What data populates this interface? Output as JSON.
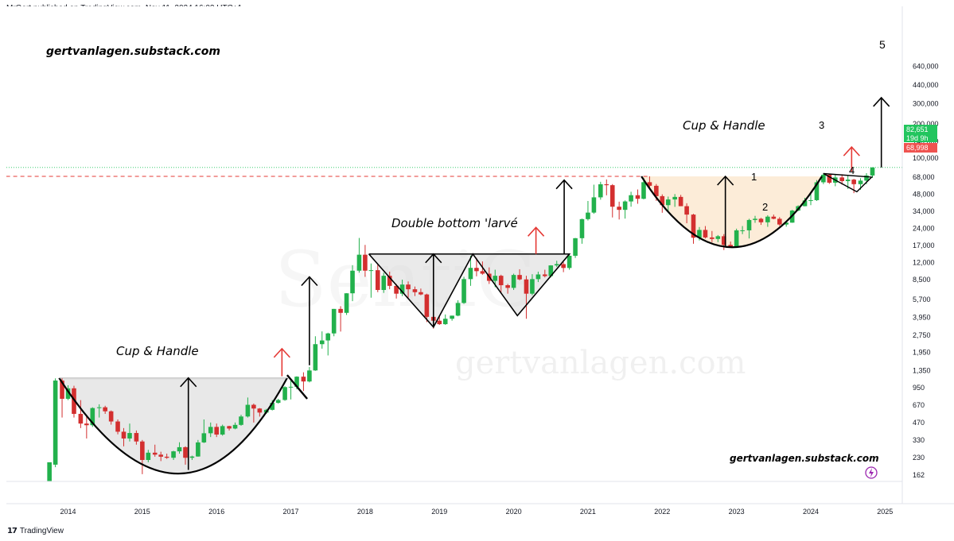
{
  "header": {
    "published_line": "MrGert published on TradingView.com, Nov 11, 2024 16:02 UTC+1"
  },
  "footer": {
    "brand": "TradingView",
    "logo_icon": "tradingview-logo-icon"
  },
  "watermarks": {
    "top_left": "gertvanlagen.substack.com",
    "bottom_right": "gertvanlagen.substack.com",
    "faint_center": "gertvanlagen.com"
  },
  "annotations": {
    "cup_handle_1": "Cup & Handle",
    "double_bottom": "Double bottom 'larvé",
    "cup_handle_2": "Cup & Handle",
    "wave_labels": [
      "1",
      "2",
      "3",
      "4",
      "5"
    ]
  },
  "price_badges": {
    "last_price": "82,651",
    "countdown": "19d 9h",
    "level": "68,998",
    "last_color": "#22c55e",
    "level_color": "#ef5350"
  },
  "chart_data": {
    "type": "candlestick",
    "scale": "log",
    "y_ticks": [
      "640,000",
      "440,000",
      "300,000",
      "200,000",
      "140,000",
      "100,000",
      "68,000",
      "48,000",
      "34,000",
      "24,000",
      "17,000",
      "12,000",
      "8,500",
      "5,700",
      "3,950",
      "2,750",
      "1,950",
      "1,350",
      "950",
      "670",
      "470",
      "330",
      "230",
      "162"
    ],
    "x_ticks": [
      "2014",
      "2015",
      "2016",
      "2017",
      "2018",
      "2019",
      "2020",
      "2021",
      "2022",
      "2023",
      "2024",
      "2025"
    ],
    "colors": {
      "up": "#22b14c",
      "down": "#d32f2f"
    },
    "candles": [
      {
        "t": 2013.75,
        "o": 110,
        "h": 200,
        "l": 100,
        "c": 210
      },
      {
        "t": 2013.83,
        "o": 200,
        "h": 1150,
        "l": 190,
        "c": 1100
      },
      {
        "t": 2013.92,
        "o": 1100,
        "h": 1165,
        "l": 520,
        "c": 760
      },
      {
        "t": 2014.0,
        "o": 760,
        "h": 1000,
        "l": 740,
        "c": 940
      },
      {
        "t": 2014.08,
        "o": 940,
        "h": 990,
        "l": 520,
        "c": 560
      },
      {
        "t": 2014.17,
        "o": 560,
        "h": 740,
        "l": 420,
        "c": 460
      },
      {
        "t": 2014.25,
        "o": 460,
        "h": 540,
        "l": 340,
        "c": 445
      },
      {
        "t": 2014.33,
        "o": 445,
        "h": 640,
        "l": 430,
        "c": 630
      },
      {
        "t": 2014.42,
        "o": 630,
        "h": 680,
        "l": 520,
        "c": 640
      },
      {
        "t": 2014.5,
        "o": 640,
        "h": 660,
        "l": 560,
        "c": 590
      },
      {
        "t": 2014.58,
        "o": 590,
        "h": 600,
        "l": 450,
        "c": 480
      },
      {
        "t": 2014.67,
        "o": 480,
        "h": 500,
        "l": 370,
        "c": 390
      },
      {
        "t": 2014.75,
        "o": 390,
        "h": 420,
        "l": 290,
        "c": 340
      },
      {
        "t": 2014.83,
        "o": 340,
        "h": 460,
        "l": 320,
        "c": 380
      },
      {
        "t": 2014.92,
        "o": 380,
        "h": 400,
        "l": 300,
        "c": 320
      },
      {
        "t": 2015.0,
        "o": 320,
        "h": 330,
        "l": 165,
        "c": 220
      },
      {
        "t": 2015.08,
        "o": 220,
        "h": 270,
        "l": 210,
        "c": 255
      },
      {
        "t": 2015.17,
        "o": 255,
        "h": 300,
        "l": 235,
        "c": 245
      },
      {
        "t": 2015.25,
        "o": 245,
        "h": 260,
        "l": 215,
        "c": 235
      },
      {
        "t": 2015.33,
        "o": 235,
        "h": 250,
        "l": 225,
        "c": 230
      },
      {
        "t": 2015.42,
        "o": 230,
        "h": 265,
        "l": 220,
        "c": 262
      },
      {
        "t": 2015.5,
        "o": 262,
        "h": 315,
        "l": 250,
        "c": 285
      },
      {
        "t": 2015.58,
        "o": 285,
        "h": 290,
        "l": 200,
        "c": 230
      },
      {
        "t": 2015.67,
        "o": 230,
        "h": 240,
        "l": 220,
        "c": 236
      },
      {
        "t": 2015.75,
        "o": 236,
        "h": 330,
        "l": 235,
        "c": 314
      },
      {
        "t": 2015.83,
        "o": 314,
        "h": 500,
        "l": 310,
        "c": 378
      },
      {
        "t": 2015.92,
        "o": 378,
        "h": 470,
        "l": 350,
        "c": 430
      },
      {
        "t": 2016.0,
        "o": 430,
        "h": 460,
        "l": 350,
        "c": 368
      },
      {
        "t": 2016.08,
        "o": 368,
        "h": 450,
        "l": 360,
        "c": 437
      },
      {
        "t": 2016.17,
        "o": 437,
        "h": 440,
        "l": 400,
        "c": 416
      },
      {
        "t": 2016.25,
        "o": 416,
        "h": 470,
        "l": 410,
        "c": 448
      },
      {
        "t": 2016.33,
        "o": 448,
        "h": 550,
        "l": 440,
        "c": 531
      },
      {
        "t": 2016.42,
        "o": 531,
        "h": 780,
        "l": 520,
        "c": 673
      },
      {
        "t": 2016.5,
        "o": 673,
        "h": 690,
        "l": 470,
        "c": 624
      },
      {
        "t": 2016.58,
        "o": 624,
        "h": 630,
        "l": 530,
        "c": 575
      },
      {
        "t": 2016.67,
        "o": 575,
        "h": 620,
        "l": 560,
        "c": 608
      },
      {
        "t": 2016.75,
        "o": 608,
        "h": 740,
        "l": 600,
        "c": 700
      },
      {
        "t": 2016.83,
        "o": 700,
        "h": 760,
        "l": 690,
        "c": 742
      },
      {
        "t": 2016.92,
        "o": 742,
        "h": 980,
        "l": 730,
        "c": 963
      },
      {
        "t": 2017.0,
        "o": 963,
        "h": 1150,
        "l": 750,
        "c": 970
      },
      {
        "t": 2017.08,
        "o": 970,
        "h": 1200,
        "l": 920,
        "c": 1190
      },
      {
        "t": 2017.17,
        "o": 1190,
        "h": 1300,
        "l": 890,
        "c": 1080
      },
      {
        "t": 2017.25,
        "o": 1080,
        "h": 1450,
        "l": 1060,
        "c": 1350
      },
      {
        "t": 2017.33,
        "o": 1350,
        "h": 2700,
        "l": 1340,
        "c": 2300
      },
      {
        "t": 2017.42,
        "o": 2300,
        "h": 2980,
        "l": 2100,
        "c": 2480
      },
      {
        "t": 2017.5,
        "o": 2480,
        "h": 2900,
        "l": 1830,
        "c": 2860
      },
      {
        "t": 2017.58,
        "o": 2860,
        "h": 4700,
        "l": 2700,
        "c": 4700
      },
      {
        "t": 2017.67,
        "o": 4700,
        "h": 4970,
        "l": 2970,
        "c": 4340
      },
      {
        "t": 2017.75,
        "o": 4340,
        "h": 6470,
        "l": 4160,
        "c": 6450
      },
      {
        "t": 2017.83,
        "o": 6450,
        "h": 11400,
        "l": 5500,
        "c": 10200
      },
      {
        "t": 2017.92,
        "o": 10200,
        "h": 19800,
        "l": 9800,
        "c": 14100
      },
      {
        "t": 2018.0,
        "o": 14100,
        "h": 17200,
        "l": 9000,
        "c": 10200
      },
      {
        "t": 2018.08,
        "o": 10200,
        "h": 11800,
        "l": 5900,
        "c": 10300
      },
      {
        "t": 2018.17,
        "o": 10300,
        "h": 11700,
        "l": 6600,
        "c": 6900
      },
      {
        "t": 2018.25,
        "o": 6900,
        "h": 9800,
        "l": 6500,
        "c": 9200
      },
      {
        "t": 2018.33,
        "o": 9200,
        "h": 10000,
        "l": 7000,
        "c": 7500
      },
      {
        "t": 2018.42,
        "o": 7500,
        "h": 7800,
        "l": 5800,
        "c": 6400
      },
      {
        "t": 2018.5,
        "o": 6400,
        "h": 8500,
        "l": 6100,
        "c": 7700
      },
      {
        "t": 2018.58,
        "o": 7700,
        "h": 8200,
        "l": 5900,
        "c": 7000
      },
      {
        "t": 2018.67,
        "o": 7000,
        "h": 7400,
        "l": 6100,
        "c": 6600
      },
      {
        "t": 2018.75,
        "o": 6600,
        "h": 7100,
        "l": 6200,
        "c": 6300
      },
      {
        "t": 2018.83,
        "o": 6300,
        "h": 6400,
        "l": 3600,
        "c": 4000
      },
      {
        "t": 2018.92,
        "o": 4000,
        "h": 4300,
        "l": 3150,
        "c": 3700
      },
      {
        "t": 2019.0,
        "o": 3700,
        "h": 4100,
        "l": 3400,
        "c": 3450
      },
      {
        "t": 2019.08,
        "o": 3450,
        "h": 4200,
        "l": 3400,
        "c": 3850
      },
      {
        "t": 2019.17,
        "o": 3850,
        "h": 4100,
        "l": 3700,
        "c": 4100
      },
      {
        "t": 2019.25,
        "o": 4100,
        "h": 5600,
        "l": 4050,
        "c": 5300
      },
      {
        "t": 2019.33,
        "o": 5300,
        "h": 9000,
        "l": 5200,
        "c": 8600
      },
      {
        "t": 2019.42,
        "o": 8600,
        "h": 13800,
        "l": 7500,
        "c": 10800
      },
      {
        "t": 2019.5,
        "o": 10800,
        "h": 13200,
        "l": 9100,
        "c": 10100
      },
      {
        "t": 2019.58,
        "o": 10100,
        "h": 12300,
        "l": 9400,
        "c": 9600
      },
      {
        "t": 2019.67,
        "o": 9600,
        "h": 10900,
        "l": 7800,
        "c": 8300
      },
      {
        "t": 2019.75,
        "o": 8300,
        "h": 10400,
        "l": 7300,
        "c": 9200
      },
      {
        "t": 2019.83,
        "o": 9200,
        "h": 9400,
        "l": 6500,
        "c": 7600
      },
      {
        "t": 2019.92,
        "o": 7600,
        "h": 7800,
        "l": 6400,
        "c": 7200
      },
      {
        "t": 2020.0,
        "o": 7200,
        "h": 9600,
        "l": 6900,
        "c": 9350
      },
      {
        "t": 2020.08,
        "o": 9350,
        "h": 10500,
        "l": 8400,
        "c": 8550
      },
      {
        "t": 2020.17,
        "o": 8550,
        "h": 9200,
        "l": 3850,
        "c": 6400
      },
      {
        "t": 2020.25,
        "o": 6400,
        "h": 9500,
        "l": 6200,
        "c": 8600
      },
      {
        "t": 2020.33,
        "o": 8600,
        "h": 10000,
        "l": 8100,
        "c": 9450
      },
      {
        "t": 2020.42,
        "o": 9450,
        "h": 10400,
        "l": 8900,
        "c": 9140
      },
      {
        "t": 2020.5,
        "o": 9140,
        "h": 11400,
        "l": 8900,
        "c": 11350
      },
      {
        "t": 2020.58,
        "o": 11350,
        "h": 12470,
        "l": 11000,
        "c": 11650
      },
      {
        "t": 2020.67,
        "o": 11650,
        "h": 12100,
        "l": 9900,
        "c": 10780
      },
      {
        "t": 2020.75,
        "o": 10780,
        "h": 14000,
        "l": 10400,
        "c": 13800
      },
      {
        "t": 2020.83,
        "o": 13800,
        "h": 19800,
        "l": 13200,
        "c": 19700
      },
      {
        "t": 2020.92,
        "o": 19700,
        "h": 29300,
        "l": 17600,
        "c": 29000
      },
      {
        "t": 2021.0,
        "o": 29000,
        "h": 41900,
        "l": 28200,
        "c": 33100
      },
      {
        "t": 2021.08,
        "o": 33100,
        "h": 58300,
        "l": 32300,
        "c": 45100
      },
      {
        "t": 2021.17,
        "o": 45100,
        "h": 61800,
        "l": 43000,
        "c": 58800
      },
      {
        "t": 2021.25,
        "o": 58800,
        "h": 64800,
        "l": 47000,
        "c": 57700
      },
      {
        "t": 2021.33,
        "o": 57700,
        "h": 59000,
        "l": 30000,
        "c": 37300
      },
      {
        "t": 2021.42,
        "o": 37300,
        "h": 41300,
        "l": 28800,
        "c": 35000
      },
      {
        "t": 2021.5,
        "o": 35000,
        "h": 42400,
        "l": 29300,
        "c": 41500
      },
      {
        "t": 2021.58,
        "o": 41500,
        "h": 50500,
        "l": 37300,
        "c": 47100
      },
      {
        "t": 2021.67,
        "o": 47100,
        "h": 52900,
        "l": 39600,
        "c": 43800
      },
      {
        "t": 2021.75,
        "o": 43800,
        "h": 67000,
        "l": 43300,
        "c": 61300
      },
      {
        "t": 2021.83,
        "o": 61300,
        "h": 69000,
        "l": 53300,
        "c": 57000
      },
      {
        "t": 2021.92,
        "o": 57000,
        "h": 59100,
        "l": 42000,
        "c": 46200
      },
      {
        "t": 2022.0,
        "o": 46200,
        "h": 47900,
        "l": 33000,
        "c": 38500
      },
      {
        "t": 2022.08,
        "o": 38500,
        "h": 45800,
        "l": 34300,
        "c": 43200
      },
      {
        "t": 2022.17,
        "o": 43200,
        "h": 48200,
        "l": 37200,
        "c": 45500
      },
      {
        "t": 2022.25,
        "o": 45500,
        "h": 47400,
        "l": 37700,
        "c": 37700
      },
      {
        "t": 2022.33,
        "o": 37700,
        "h": 40000,
        "l": 26700,
        "c": 31800
      },
      {
        "t": 2022.42,
        "o": 31800,
        "h": 32300,
        "l": 17600,
        "c": 19900
      },
      {
        "t": 2022.5,
        "o": 19900,
        "h": 24700,
        "l": 18800,
        "c": 23300
      },
      {
        "t": 2022.58,
        "o": 23300,
        "h": 25200,
        "l": 19600,
        "c": 20000
      },
      {
        "t": 2022.67,
        "o": 20000,
        "h": 22800,
        "l": 18200,
        "c": 19400
      },
      {
        "t": 2022.75,
        "o": 19400,
        "h": 21000,
        "l": 18200,
        "c": 20500
      },
      {
        "t": 2022.83,
        "o": 20500,
        "h": 21400,
        "l": 15500,
        "c": 17200
      },
      {
        "t": 2022.92,
        "o": 17200,
        "h": 18400,
        "l": 16300,
        "c": 16500
      },
      {
        "t": 2023.0,
        "o": 16500,
        "h": 23900,
        "l": 16500,
        "c": 23100
      },
      {
        "t": 2023.08,
        "o": 23100,
        "h": 25200,
        "l": 21400,
        "c": 23100
      },
      {
        "t": 2023.17,
        "o": 23100,
        "h": 29200,
        "l": 19600,
        "c": 28500
      },
      {
        "t": 2023.25,
        "o": 28500,
        "h": 31000,
        "l": 26900,
        "c": 29200
      },
      {
        "t": 2023.33,
        "o": 29200,
        "h": 29800,
        "l": 25800,
        "c": 27200
      },
      {
        "t": 2023.42,
        "o": 27200,
        "h": 31400,
        "l": 24800,
        "c": 30500
      },
      {
        "t": 2023.5,
        "o": 30500,
        "h": 31800,
        "l": 28900,
        "c": 29200
      },
      {
        "t": 2023.58,
        "o": 29200,
        "h": 30200,
        "l": 25300,
        "c": 26000
      },
      {
        "t": 2023.67,
        "o": 26000,
        "h": 27500,
        "l": 24900,
        "c": 27000
      },
      {
        "t": 2023.75,
        "o": 27000,
        "h": 35000,
        "l": 26900,
        "c": 34500
      },
      {
        "t": 2023.83,
        "o": 34500,
        "h": 38400,
        "l": 34100,
        "c": 37700
      },
      {
        "t": 2023.92,
        "o": 37700,
        "h": 44700,
        "l": 37600,
        "c": 42300
      },
      {
        "t": 2024.0,
        "o": 42300,
        "h": 48900,
        "l": 38500,
        "c": 42600
      },
      {
        "t": 2024.08,
        "o": 42600,
        "h": 64000,
        "l": 41900,
        "c": 61200
      },
      {
        "t": 2024.17,
        "o": 61200,
        "h": 73800,
        "l": 59000,
        "c": 71300
      },
      {
        "t": 2024.25,
        "o": 71300,
        "h": 72800,
        "l": 59200,
        "c": 60700
      },
      {
        "t": 2024.33,
        "o": 60700,
        "h": 71900,
        "l": 56500,
        "c": 67500
      },
      {
        "t": 2024.42,
        "o": 67500,
        "h": 72000,
        "l": 58400,
        "c": 62700
      },
      {
        "t": 2024.5,
        "o": 62700,
        "h": 70000,
        "l": 53500,
        "c": 64600
      },
      {
        "t": 2024.58,
        "o": 64600,
        "h": 65600,
        "l": 49100,
        "c": 58900
      },
      {
        "t": 2024.67,
        "o": 58900,
        "h": 66500,
        "l": 52500,
        "c": 63300
      },
      {
        "t": 2024.75,
        "o": 63300,
        "h": 73600,
        "l": 58900,
        "c": 70200
      },
      {
        "t": 2024.83,
        "o": 70200,
        "h": 83000,
        "l": 66800,
        "c": 82651
      }
    ]
  }
}
